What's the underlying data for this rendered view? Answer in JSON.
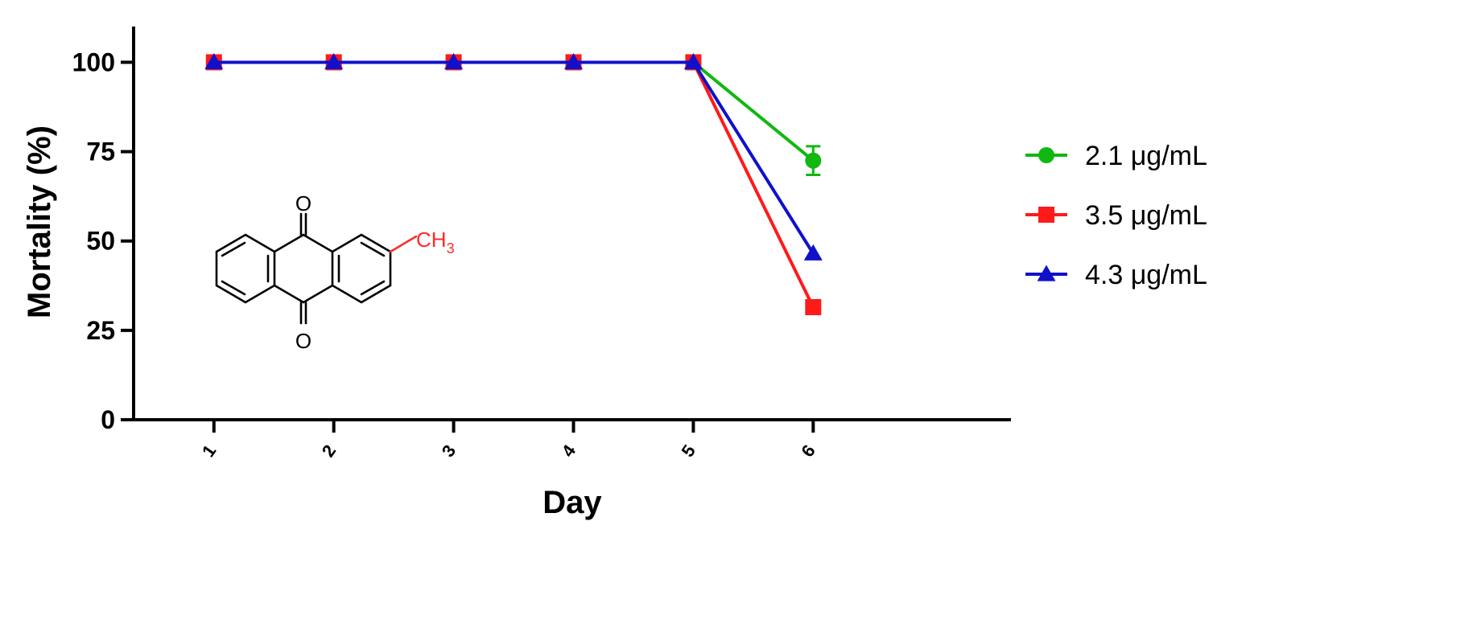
{
  "chart_data": {
    "type": "line",
    "xlabel": "Day",
    "ylabel": "Mortality (%)",
    "x": [
      1,
      2,
      3,
      4,
      5,
      6
    ],
    "x_tick_labels": [
      "1",
      "2",
      "3",
      "4",
      "5",
      "6"
    ],
    "y_ticks": [
      0,
      25,
      50,
      75,
      100
    ],
    "y_tick_labels": [
      "0",
      "25",
      "50",
      "75",
      "100"
    ],
    "ylim": [
      0,
      110
    ],
    "xlim": [
      0.33,
      7.65
    ],
    "grid": false,
    "legend_position": "right",
    "series": [
      {
        "name": "2.1 μg/mL",
        "color": "#10b810",
        "marker": "circle",
        "values": [
          100,
          100,
          100,
          100,
          100,
          72.5
        ],
        "error": [
          0,
          0,
          0,
          0,
          0,
          4
        ]
      },
      {
        "name": "3.5 μg/mL",
        "color": "#ff1a1a",
        "marker": "square",
        "values": [
          100,
          100,
          100,
          100,
          100,
          31.5
        ],
        "error": [
          0,
          0,
          0,
          0,
          0,
          0
        ]
      },
      {
        "name": "4.3 μg/mL",
        "color": "#1010cc",
        "marker": "triangle",
        "values": [
          100,
          100,
          100,
          100,
          100,
          46.5
        ],
        "error": [
          0,
          0,
          0,
          0,
          0,
          0
        ]
      }
    ]
  },
  "structure": {
    "o_top": "O",
    "o_bottom": "O",
    "substituent_main": "CH",
    "substituent_sub": "3",
    "substituent_color": "#ff2a2a"
  }
}
